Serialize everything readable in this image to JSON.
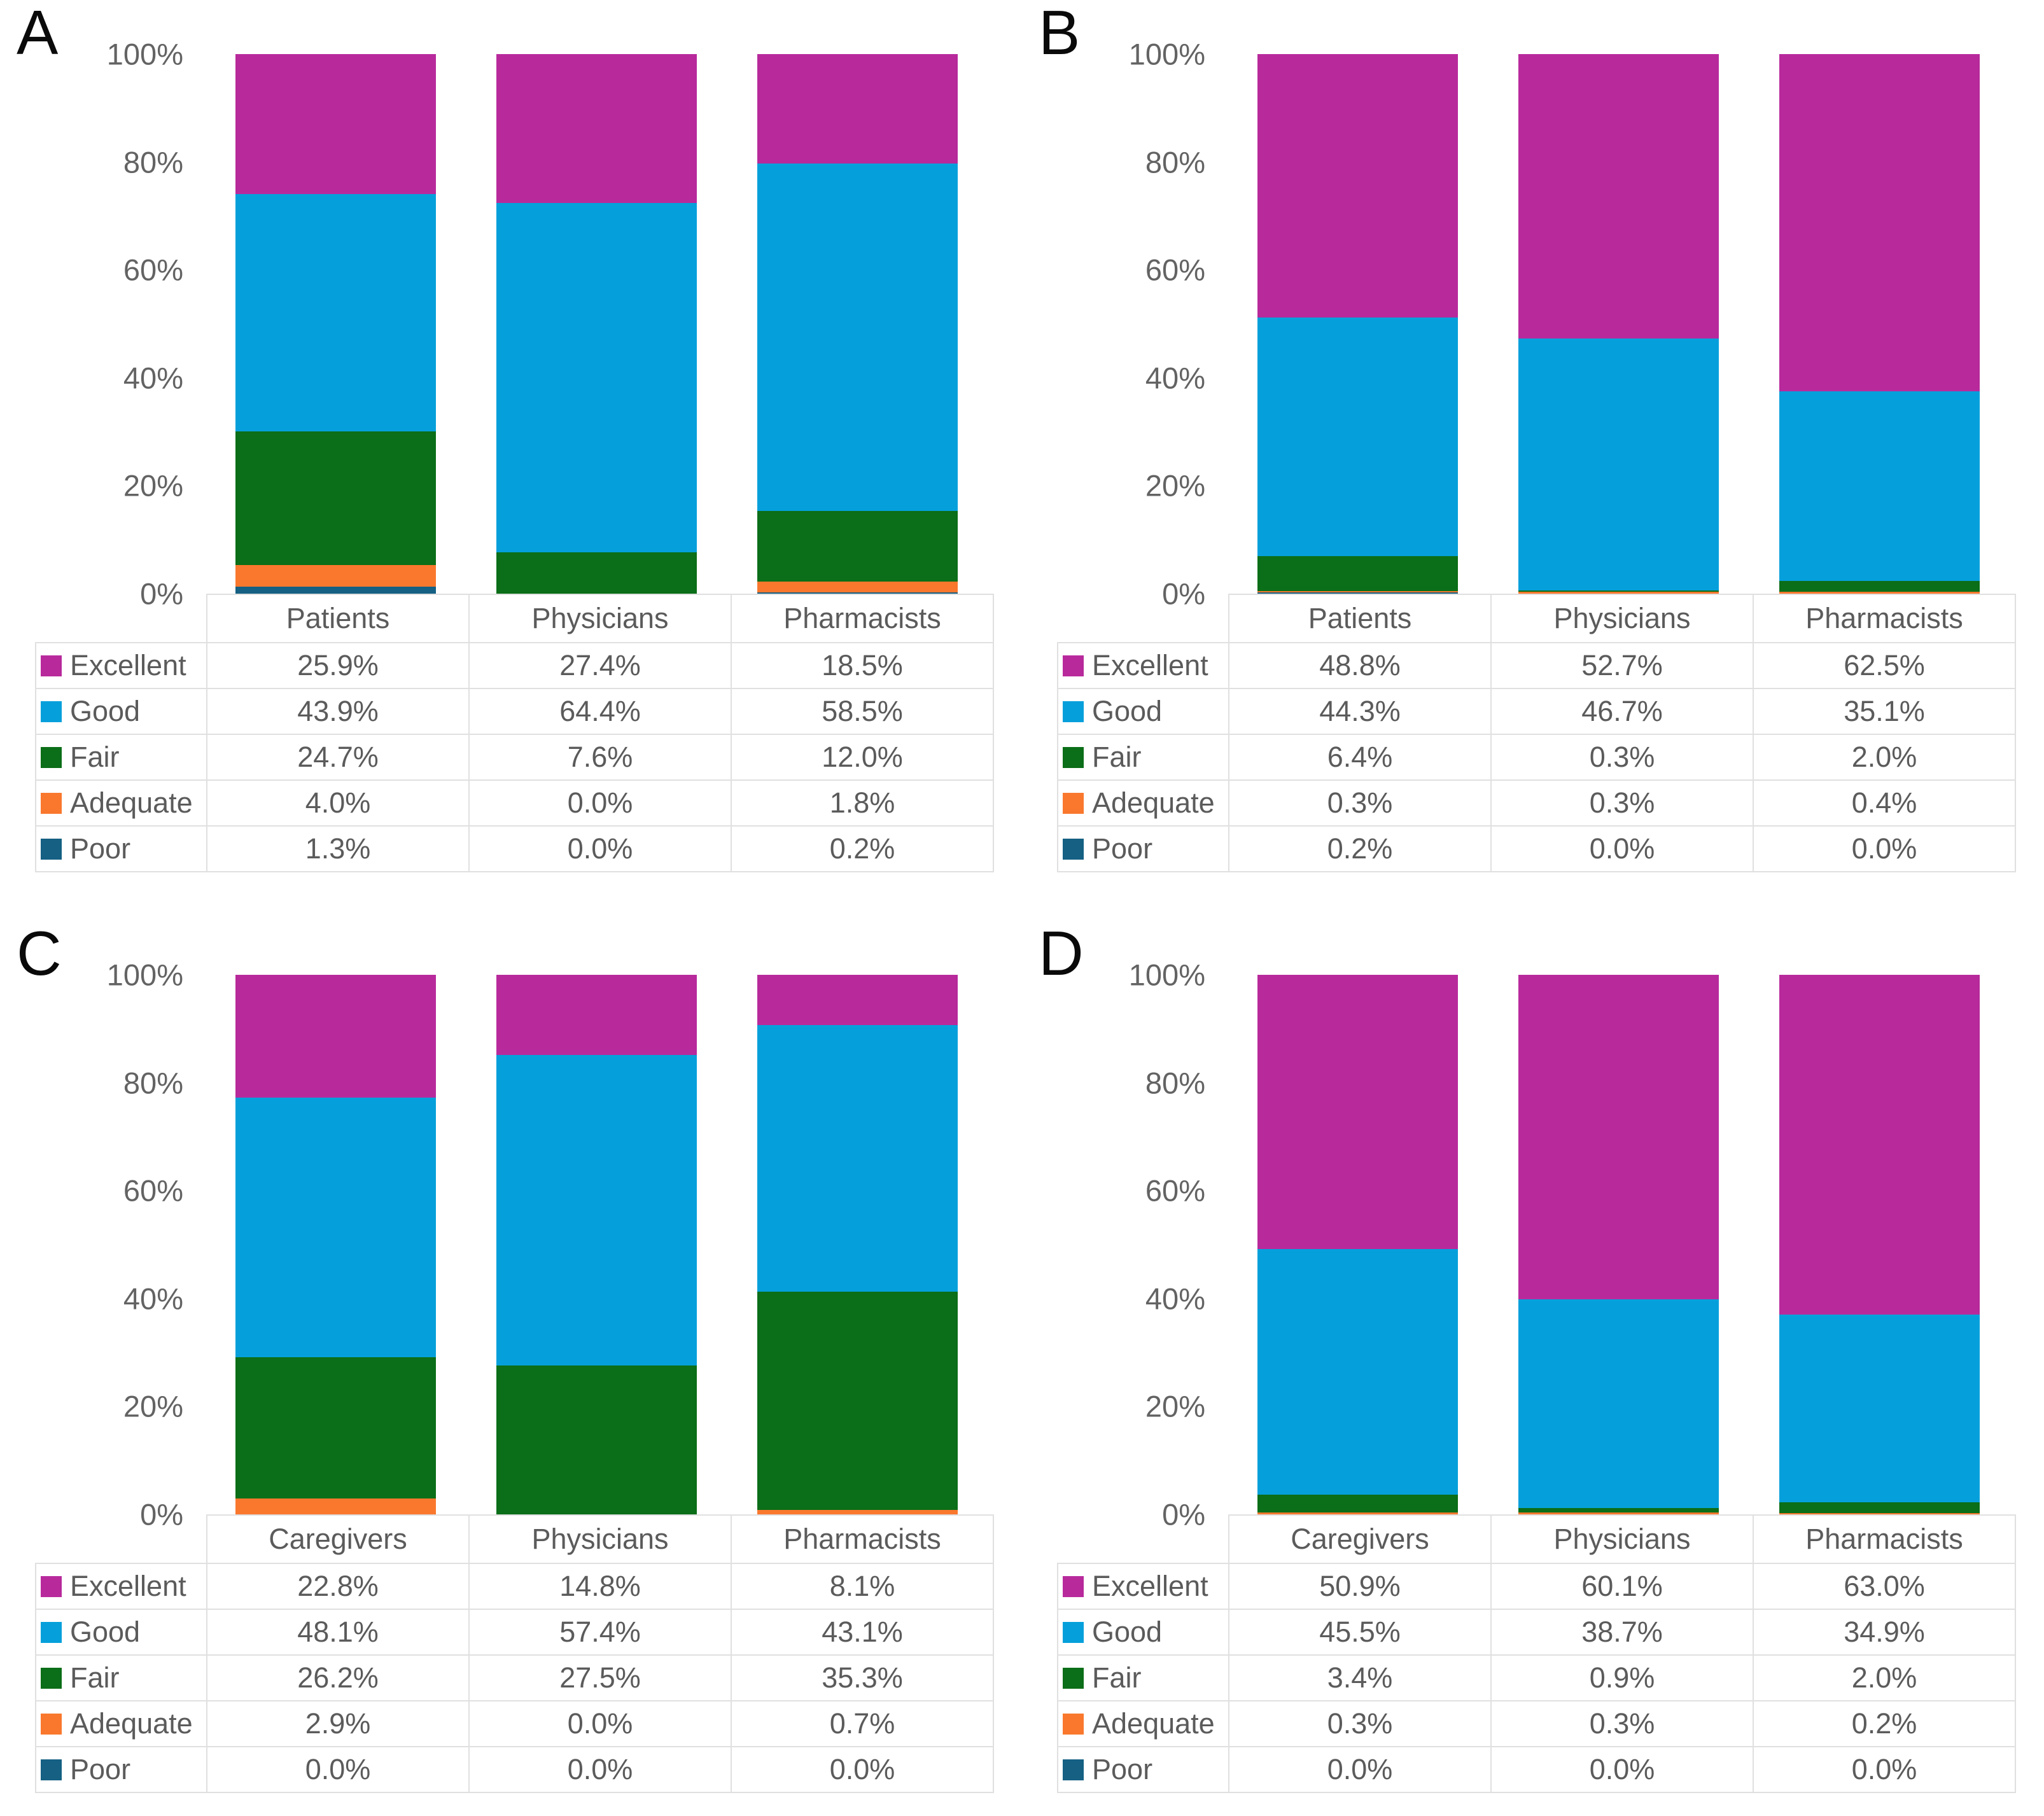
{
  "figure": {
    "background": "#ffffff",
    "text_color": "#5b5b5b",
    "axis_text_color": "#636363",
    "grid_border_color": "#e0e0e0",
    "panel_letters": [
      "A",
      "B",
      "C",
      "D"
    ]
  },
  "legend": {
    "entries": [
      "Excellent",
      "Good",
      "Fair",
      "Adequate",
      "Poor"
    ],
    "colors": {
      "Excellent": "#b82a9c",
      "Good": "#05a0db",
      "Fair": "#0b6e18",
      "Adequate": "#f9782e",
      "Poor": "#156083"
    }
  },
  "chart_data": [
    {
      "type": "bar",
      "variant": "stacked-100",
      "panel": "A",
      "categories": [
        "Patients",
        "Physicians",
        "Pharmacists"
      ],
      "series": [
        {
          "name": "Excellent",
          "color": "#b82a9c",
          "values": [
            25.9,
            27.4,
            18.5
          ]
        },
        {
          "name": "Good",
          "color": "#05a0db",
          "values": [
            43.9,
            64.4,
            58.5
          ]
        },
        {
          "name": "Fair",
          "color": "#0b6e18",
          "values": [
            24.7,
            7.6,
            12.0
          ]
        },
        {
          "name": "Adequate",
          "color": "#f9782e",
          "values": [
            4.0,
            0.0,
            1.8
          ]
        },
        {
          "name": "Poor",
          "color": "#156083",
          "values": [
            1.3,
            0.0,
            0.2
          ]
        }
      ],
      "ylim": [
        0,
        100
      ],
      "ytick_values": [
        100,
        80,
        60,
        40,
        20,
        0
      ],
      "ytick_labels": [
        "100%",
        "80%",
        "60%",
        "40%",
        "20%",
        "0%"
      ],
      "grid": false,
      "legend_position": "table-left"
    },
    {
      "type": "bar",
      "variant": "stacked-100",
      "panel": "B",
      "categories": [
        "Patients",
        "Physicians",
        "Pharmacists"
      ],
      "series": [
        {
          "name": "Excellent",
          "color": "#b82a9c",
          "values": [
            48.8,
            52.7,
            62.5
          ]
        },
        {
          "name": "Good",
          "color": "#05a0db",
          "values": [
            44.3,
            46.7,
            35.1
          ]
        },
        {
          "name": "Fair",
          "color": "#0b6e18",
          "values": [
            6.4,
            0.3,
            2.0
          ]
        },
        {
          "name": "Adequate",
          "color": "#f9782e",
          "values": [
            0.3,
            0.3,
            0.4
          ]
        },
        {
          "name": "Poor",
          "color": "#156083",
          "values": [
            0.2,
            0.0,
            0.0
          ]
        }
      ],
      "ylim": [
        0,
        100
      ],
      "ytick_values": [
        100,
        80,
        60,
        40,
        20,
        0
      ],
      "ytick_labels": [
        "100%",
        "80%",
        "60%",
        "40%",
        "20%",
        "0%"
      ],
      "grid": false,
      "legend_position": "table-left"
    },
    {
      "type": "bar",
      "variant": "stacked-100",
      "panel": "C",
      "categories": [
        "Caregivers",
        "Physicians",
        "Pharmacists"
      ],
      "series": [
        {
          "name": "Excellent",
          "color": "#b82a9c",
          "values": [
            22.8,
            14.8,
            8.1
          ]
        },
        {
          "name": "Good",
          "color": "#05a0db",
          "values": [
            48.1,
            57.4,
            43.1
          ]
        },
        {
          "name": "Fair",
          "color": "#0b6e18",
          "values": [
            26.2,
            27.5,
            35.3
          ]
        },
        {
          "name": "Adequate",
          "color": "#f9782e",
          "values": [
            2.9,
            0.0,
            0.7
          ]
        },
        {
          "name": "Poor",
          "color": "#156083",
          "values": [
            0.0,
            0.0,
            0.0
          ]
        }
      ],
      "ylim": [
        0,
        100
      ],
      "ytick_values": [
        100,
        80,
        60,
        40,
        20,
        0
      ],
      "ytick_labels": [
        "100%",
        "80%",
        "60%",
        "40%",
        "20%",
        "0%"
      ],
      "grid": false,
      "legend_position": "table-left"
    },
    {
      "type": "bar",
      "variant": "stacked-100",
      "panel": "D",
      "categories": [
        "Caregivers",
        "Physicians",
        "Pharmacists"
      ],
      "series": [
        {
          "name": "Excellent",
          "color": "#b82a9c",
          "values": [
            50.9,
            60.1,
            63.0
          ]
        },
        {
          "name": "Good",
          "color": "#05a0db",
          "values": [
            45.5,
            38.7,
            34.9
          ]
        },
        {
          "name": "Fair",
          "color": "#0b6e18",
          "values": [
            3.4,
            0.9,
            2.0
          ]
        },
        {
          "name": "Adequate",
          "color": "#f9782e",
          "values": [
            0.3,
            0.3,
            0.2
          ]
        },
        {
          "name": "Poor",
          "color": "#156083",
          "values": [
            0.0,
            0.0,
            0.0
          ]
        }
      ],
      "ylim": [
        0,
        100
      ],
      "ytick_values": [
        100,
        80,
        60,
        40,
        20,
        0
      ],
      "ytick_labels": [
        "100%",
        "80%",
        "60%",
        "40%",
        "20%",
        "0%"
      ],
      "grid": false,
      "legend_position": "table-left"
    }
  ]
}
